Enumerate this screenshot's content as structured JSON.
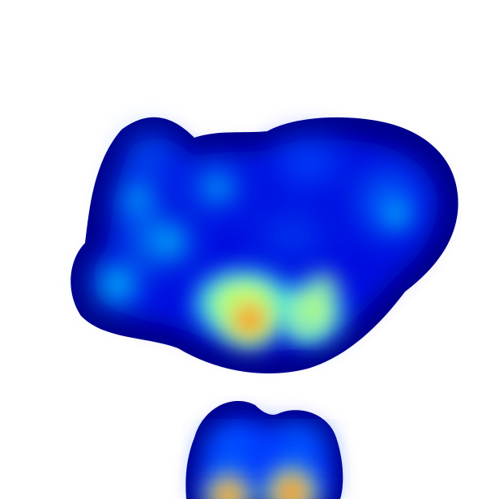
{
  "image": {
    "kind": "heatmap-visualization",
    "colormap": "jet",
    "background_color": "#ffffff",
    "colors": {
      "low": "#00008b",
      "blue": "#0000ff",
      "sky": "#0080ff",
      "cyan": "#00ffff",
      "green": "#80ff80",
      "yellow": "#ffff00",
      "orange": "#ff8000",
      "red": "#ff0000",
      "peak": "#800000"
    }
  }
}
